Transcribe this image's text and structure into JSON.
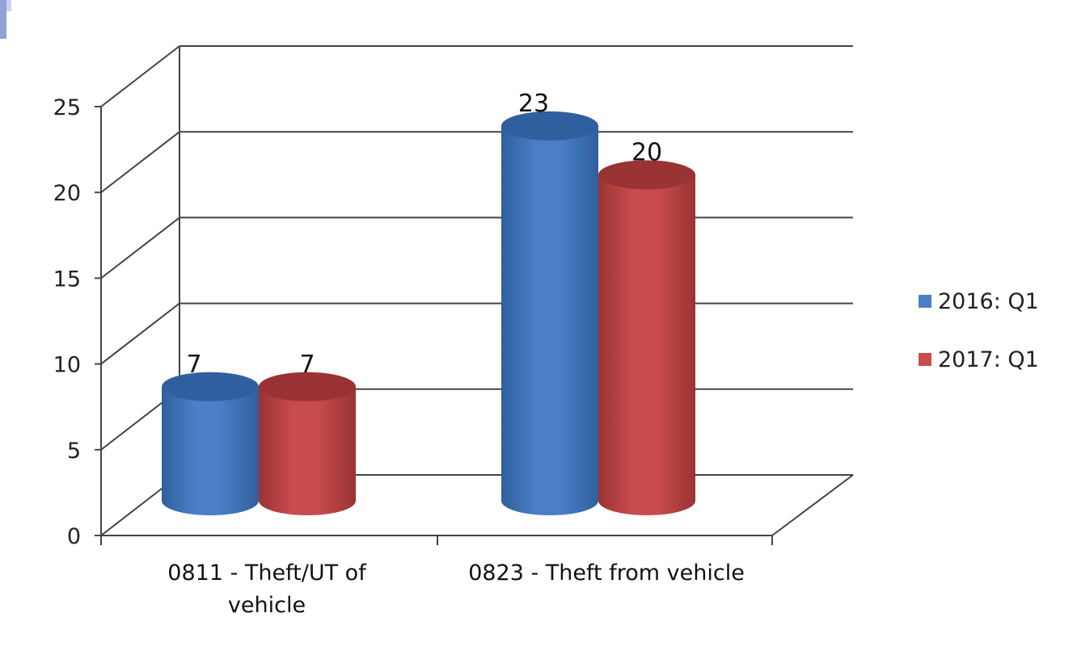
{
  "chart_data": {
    "type": "bar",
    "categories": [
      "0811 - Theft/UT of vehicle",
      "0823 - Theft from vehicle"
    ],
    "series": [
      {
        "name": "2016: Q1",
        "values": [
          7,
          23
        ],
        "color": "#4a7fc6",
        "dark": "#2f5f9e"
      },
      {
        "name": "2017: Q1",
        "values": [
          7,
          20
        ],
        "color": "#c94c4c",
        "dark": "#9a3333"
      }
    ],
    "ylim": [
      0,
      25
    ],
    "yticks": [
      0,
      5,
      10,
      15,
      20,
      25
    ],
    "grid": true,
    "legend_position": "right"
  }
}
